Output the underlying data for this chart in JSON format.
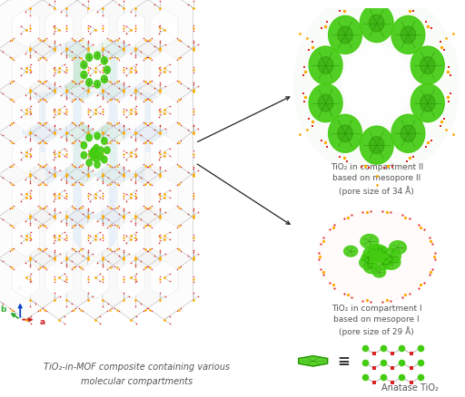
{
  "title_line1": "TiO₂-in-MOF composite containing various",
  "title_line2": "molecular compartments",
  "label_II_line1": "TiO₂ in compartment II",
  "label_II_line2": "based on mesopore II",
  "label_II_line3": "(pore size of 34 Å)",
  "label_I_line1": "TiO₂ in compartment I",
  "label_I_line2": "based on mesopore I",
  "label_I_line3": "(pore size of 29 Å)",
  "label_anatase": "Anatase TiO₂",
  "equiv_symbol": "≡",
  "bg_color": "#ffffff",
  "text_color": "#555555",
  "axis_c_color": "#1144cc",
  "axis_b_color": "#33aa33",
  "axis_a_color": "#cc2222",
  "green_tio2": "#44cc11",
  "green_dark": "#228800",
  "orange_node": "#ffaa00",
  "red_node": "#dd2222",
  "fig_width": 5.12,
  "fig_height": 4.38,
  "dpi": 100
}
